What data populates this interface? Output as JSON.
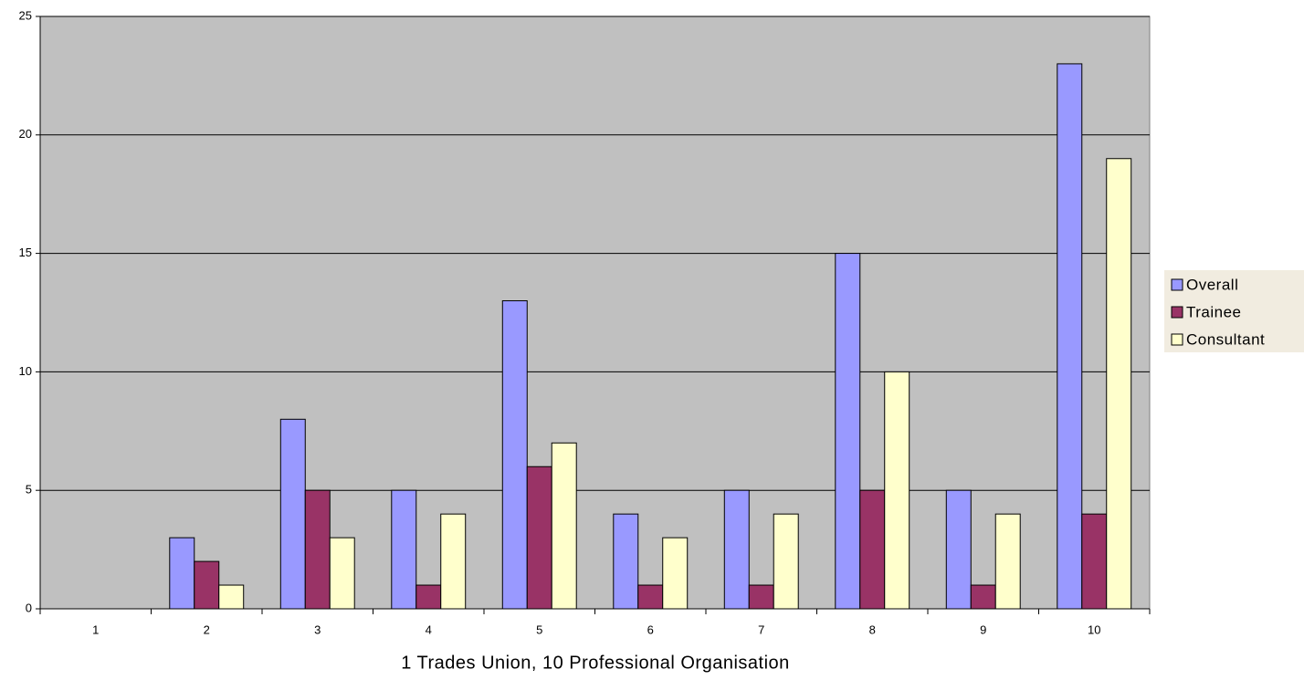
{
  "chart_data": {
    "type": "bar",
    "x_label": "1 Trades Union, 10 Professional Organisation",
    "categories": [
      "1",
      "2",
      "3",
      "4",
      "5",
      "6",
      "7",
      "8",
      "9",
      "10"
    ],
    "series": [
      {
        "name": "Overall",
        "color": "#9999ff",
        "values": [
          0,
          3,
          8,
          5,
          13,
          4,
          5,
          15,
          5,
          23
        ]
      },
      {
        "name": "Trainee",
        "color": "#993366",
        "values": [
          0,
          2,
          5,
          1,
          6,
          1,
          1,
          5,
          1,
          4
        ]
      },
      {
        "name": "Consultant",
        "color": "#ffffcc",
        "values": [
          0,
          1,
          3,
          4,
          7,
          3,
          4,
          10,
          4,
          19
        ]
      }
    ],
    "ylim": [
      0,
      25
    ],
    "yticks": [
      0,
      5,
      10,
      15,
      20,
      25
    ],
    "grid": true,
    "legend": "right",
    "plot_background": "#c0c0c0"
  }
}
